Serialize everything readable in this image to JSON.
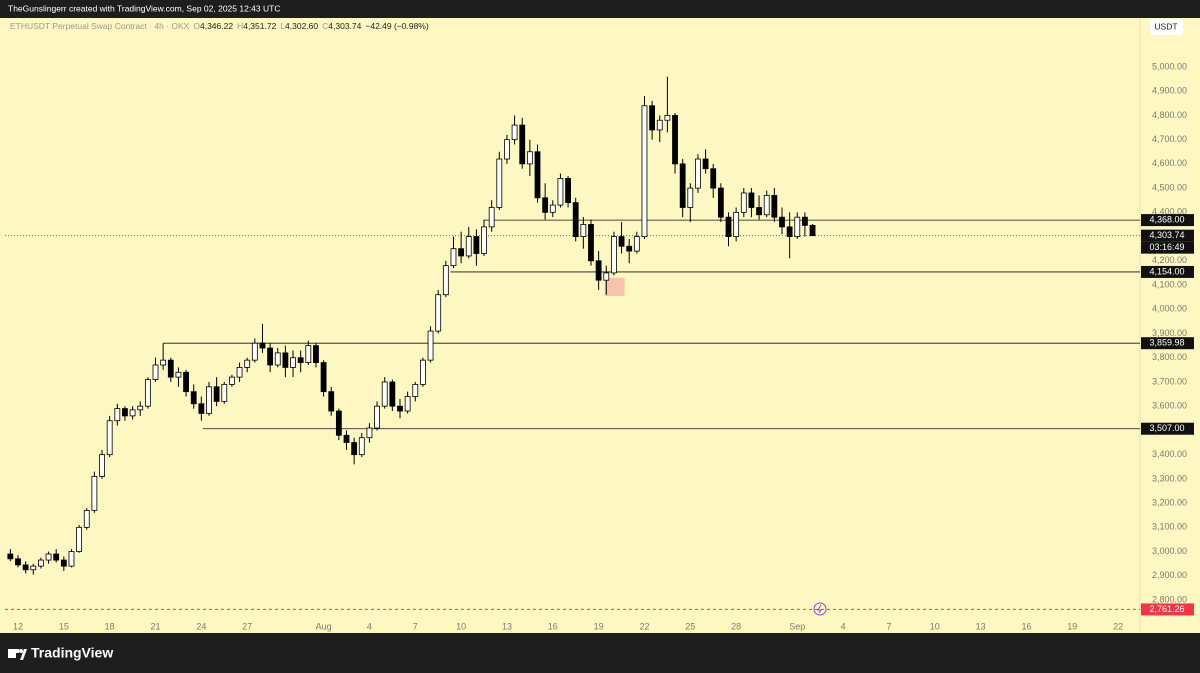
{
  "header": {
    "credit": "TheGunslingerr created with TradingView.com, Sep 02, 2025 12:43 UTC",
    "brand": "TradingView"
  },
  "chart_data": {
    "type": "candlestick",
    "symbol": "ETHUSDT Perpetual Swap Contract · 4h · OKX",
    "ohlc": [
      {
        "key": "O",
        "label": "4,346.22"
      },
      {
        "key": "H",
        "label": "4,351.72"
      },
      {
        "key": "L",
        "label": "4,302.60"
      },
      {
        "key": "C",
        "label": "4,303.74"
      }
    ],
    "change": "−42.49 (−0.98%)",
    "currency": "USDT",
    "up_color": "#ffffff",
    "down_color": "#000000",
    "wick_color": "#000000",
    "xlim": [
      11.15,
      85.43
    ],
    "xticks": [
      12,
      15,
      18,
      21,
      24,
      27,
      {
        "value": 32,
        "label": "Aug"
      },
      {
        "value": 35,
        "label": "4"
      },
      {
        "value": 38,
        "label": "7"
      },
      {
        "value": 41,
        "label": "10"
      },
      {
        "value": 44,
        "label": "13"
      },
      {
        "value": 47,
        "label": "16"
      },
      {
        "value": 50,
        "label": "19"
      },
      {
        "value": 53,
        "label": "22"
      },
      {
        "value": 56,
        "label": "25"
      },
      {
        "value": 59,
        "label": "28"
      },
      {
        "value": 63,
        "label": "Sep"
      },
      {
        "value": 66,
        "label": "4"
      },
      {
        "value": 69,
        "label": "7"
      },
      {
        "value": 72,
        "label": "10"
      },
      {
        "value": 75,
        "label": "13"
      },
      {
        "value": 78,
        "label": "16"
      },
      {
        "value": 81,
        "label": "19"
      },
      {
        "value": 84,
        "label": "22"
      }
    ],
    "ylim": [
      2664,
      5202
    ],
    "yticks": [
      {
        "value": 2800,
        "label": "2,800.00"
      },
      {
        "value": 2900,
        "label": "2,900.00"
      },
      {
        "value": 3000,
        "label": "3,000.00"
      },
      {
        "value": 3100,
        "label": "3,100.00"
      },
      {
        "value": 3200,
        "label": "3,200.00"
      },
      {
        "value": 3300,
        "label": "3,300.00"
      },
      {
        "value": 3400,
        "label": "3,400.00"
      },
      {
        "value": 3500,
        "label": "3,500.00"
      },
      {
        "value": 3600,
        "label": "3,600.00"
      },
      {
        "value": 3700,
        "label": "3,700.00"
      },
      {
        "value": 3800,
        "label": "3,800.00"
      },
      {
        "value": 3900,
        "label": "3,900.00"
      },
      {
        "value": 4000,
        "label": "4,000.00"
      },
      {
        "value": 4100,
        "label": "4,100.00"
      },
      {
        "value": 4200,
        "label": "4,200.00"
      },
      {
        "value": 4300,
        "label": "4,300.00"
      },
      {
        "value": 4400,
        "label": "4,400.00"
      },
      {
        "value": 4500,
        "label": "4,500.00"
      },
      {
        "value": 4600,
        "label": "4,600.00"
      },
      {
        "value": 4700,
        "label": "4,700.00"
      },
      {
        "value": 4800,
        "label": "4,800.00"
      },
      {
        "value": 4900,
        "label": "4,900.00"
      },
      {
        "value": 5000,
        "label": "5,000.00"
      }
    ],
    "x": [
      11.5,
      12,
      12.5,
      13,
      13.5,
      14,
      14.5,
      15,
      15.5,
      16,
      16.5,
      17,
      17.5,
      18,
      18.5,
      19,
      19.5,
      20,
      20.5,
      21,
      21.5,
      22,
      22.5,
      23,
      23.5,
      24,
      24.5,
      25,
      25.5,
      26,
      26.5,
      27,
      27.5,
      28,
      28.5,
      29,
      29.5,
      30,
      30.5,
      31,
      31.5,
      32,
      32.5,
      33,
      33.5,
      34,
      34.5,
      35,
      35.5,
      36,
      36.5,
      37,
      37.5,
      38,
      38.5,
      39,
      39.5,
      40,
      40.5,
      41,
      41.5,
      42,
      42.5,
      43,
      43.5,
      44,
      44.5,
      45,
      45.5,
      46,
      46.5,
      47,
      47.5,
      48,
      48.5,
      49,
      49.5,
      50,
      50.5,
      51,
      51.5,
      52,
      52.5,
      53,
      53.5,
      54,
      54.5,
      55,
      55.5,
      56,
      56.5,
      57,
      57.5,
      58,
      58.5,
      59,
      59.5,
      60,
      60.5,
      61,
      61.5,
      62,
      62.5,
      63,
      63.5,
      64
    ],
    "candles": [
      [
        2990,
        3010,
        2960,
        2970
      ],
      [
        2970,
        2985,
        2935,
        2945
      ],
      [
        2945,
        2960,
        2910,
        2925
      ],
      [
        2925,
        2950,
        2905,
        2940
      ],
      [
        2940,
        2975,
        2930,
        2965
      ],
      [
        2965,
        3000,
        2950,
        2990
      ],
      [
        2990,
        3010,
        2955,
        2965
      ],
      [
        2965,
        2980,
        2920,
        2940
      ],
      [
        2940,
        3010,
        2935,
        3000
      ],
      [
        3000,
        3110,
        2995,
        3100
      ],
      [
        3100,
        3180,
        3090,
        3170
      ],
      [
        3170,
        3330,
        3160,
        3310
      ],
      [
        3310,
        3420,
        3300,
        3400
      ],
      [
        3400,
        3560,
        3390,
        3540
      ],
      [
        3540,
        3610,
        3520,
        3590
      ],
      [
        3590,
        3600,
        3540,
        3560
      ],
      [
        3560,
        3600,
        3545,
        3585
      ],
      [
        3585,
        3620,
        3560,
        3600
      ],
      [
        3600,
        3720,
        3590,
        3710
      ],
      [
        3710,
        3800,
        3700,
        3770
      ],
      [
        3770,
        3860,
        3750,
        3790
      ],
      [
        3790,
        3800,
        3700,
        3720
      ],
      [
        3720,
        3760,
        3680,
        3740
      ],
      [
        3740,
        3750,
        3640,
        3660
      ],
      [
        3660,
        3690,
        3590,
        3610
      ],
      [
        3610,
        3640,
        3540,
        3570
      ],
      [
        3570,
        3700,
        3560,
        3680
      ],
      [
        3680,
        3720,
        3600,
        3620
      ],
      [
        3620,
        3700,
        3610,
        3690
      ],
      [
        3690,
        3730,
        3680,
        3720
      ],
      [
        3720,
        3780,
        3700,
        3760
      ],
      [
        3760,
        3800,
        3740,
        3790
      ],
      [
        3790,
        3880,
        3780,
        3860
      ],
      [
        3860,
        3940,
        3820,
        3840
      ],
      [
        3840,
        3860,
        3740,
        3770
      ],
      [
        3770,
        3840,
        3760,
        3820
      ],
      [
        3820,
        3850,
        3720,
        3760
      ],
      [
        3760,
        3830,
        3720,
        3800
      ],
      [
        3800,
        3830,
        3740,
        3780
      ],
      [
        3780,
        3870,
        3770,
        3850
      ],
      [
        3850,
        3860,
        3760,
        3780
      ],
      [
        3780,
        3790,
        3640,
        3660
      ],
      [
        3660,
        3680,
        3560,
        3580
      ],
      [
        3580,
        3590,
        3460,
        3480
      ],
      [
        3480,
        3500,
        3420,
        3450
      ],
      [
        3450,
        3470,
        3360,
        3400
      ],
      [
        3400,
        3490,
        3390,
        3470
      ],
      [
        3470,
        3530,
        3450,
        3510
      ],
      [
        3510,
        3620,
        3500,
        3600
      ],
      [
        3600,
        3720,
        3590,
        3700
      ],
      [
        3700,
        3710,
        3580,
        3600
      ],
      [
        3600,
        3630,
        3550,
        3580
      ],
      [
        3580,
        3660,
        3570,
        3640
      ],
      [
        3640,
        3700,
        3620,
        3690
      ],
      [
        3690,
        3800,
        3680,
        3790
      ],
      [
        3790,
        3930,
        3780,
        3910
      ],
      [
        3910,
        4080,
        3900,
        4060
      ],
      [
        4060,
        4200,
        4050,
        4180
      ],
      [
        4180,
        4300,
        4170,
        4250
      ],
      [
        4250,
        4320,
        4190,
        4220
      ],
      [
        4220,
        4340,
        4210,
        4300
      ],
      [
        4300,
        4330,
        4180,
        4230
      ],
      [
        4230,
        4370,
        4220,
        4340
      ],
      [
        4340,
        4450,
        4320,
        4420
      ],
      [
        4420,
        4650,
        4410,
        4620
      ],
      [
        4620,
        4720,
        4600,
        4700
      ],
      [
        4700,
        4800,
        4680,
        4760
      ],
      [
        4760,
        4790,
        4580,
        4600
      ],
      [
        4600,
        4700,
        4550,
        4650
      ],
      [
        4650,
        4680,
        4440,
        4460
      ],
      [
        4460,
        4520,
        4370,
        4400
      ],
      [
        4400,
        4450,
        4380,
        4430
      ],
      [
        4430,
        4560,
        4420,
        4540
      ],
      [
        4540,
        4550,
        4420,
        4440
      ],
      [
        4440,
        4460,
        4280,
        4300
      ],
      [
        4300,
        4380,
        4250,
        4350
      ],
      [
        4350,
        4370,
        4180,
        4200
      ],
      [
        4200,
        4240,
        4080,
        4120
      ],
      [
        4120,
        4180,
        4060,
        4150
      ],
      [
        4150,
        4320,
        4140,
        4300
      ],
      [
        4300,
        4360,
        4230,
        4260
      ],
      [
        4260,
        4290,
        4190,
        4240
      ],
      [
        4240,
        4320,
        4230,
        4300
      ],
      [
        4300,
        4880,
        4290,
        4840
      ],
      [
        4840,
        4860,
        4700,
        4740
      ],
      [
        4740,
        4800,
        4690,
        4780
      ],
      [
        4780,
        4960,
        4730,
        4800
      ],
      [
        4800,
        4810,
        4560,
        4600
      ],
      [
        4600,
        4620,
        4380,
        4420
      ],
      [
        4420,
        4520,
        4360,
        4500
      ],
      [
        4500,
        4640,
        4480,
        4620
      ],
      [
        4620,
        4660,
        4560,
        4580
      ],
      [
        4580,
        4600,
        4460,
        4500
      ],
      [
        4500,
        4520,
        4360,
        4380
      ],
      [
        4380,
        4400,
        4260,
        4300
      ],
      [
        4300,
        4420,
        4280,
        4400
      ],
      [
        4400,
        4500,
        4380,
        4480
      ],
      [
        4480,
        4500,
        4380,
        4420
      ],
      [
        4420,
        4470,
        4370,
        4390
      ],
      [
        4390,
        4490,
        4380,
        4470
      ],
      [
        4470,
        4500,
        4360,
        4380
      ],
      [
        4380,
        4420,
        4310,
        4340
      ],
      [
        4340,
        4400,
        4210,
        4300
      ],
      [
        4300,
        4400,
        4290,
        4380
      ],
      [
        4380,
        4400,
        4300,
        4346.22
      ],
      [
        4346.22,
        4351.72,
        4302.6,
        4303.74
      ]
    ],
    "levels": [
      {
        "value": 4368,
        "label": "4,368.00",
        "start": 42.5
      },
      {
        "value": 4154,
        "label": "4,154.00",
        "start": 40.3
      },
      {
        "value": 3859.98,
        "label": "3,859.98",
        "start": 21.5
      },
      {
        "value": 3507,
        "label": "3,507.00",
        "start": 24.1
      }
    ],
    "last": {
      "value": 4303.74,
      "label": "4,303.74",
      "countdown": "03:16:49"
    },
    "low_line": {
      "value": 2761.26,
      "label": "2,761.26",
      "color": "#f23645"
    },
    "highlight": {
      "x": [
        50.4,
        51.7
      ],
      "y": [
        4055,
        4130
      ],
      "color": "#f8b4a6"
    }
  }
}
